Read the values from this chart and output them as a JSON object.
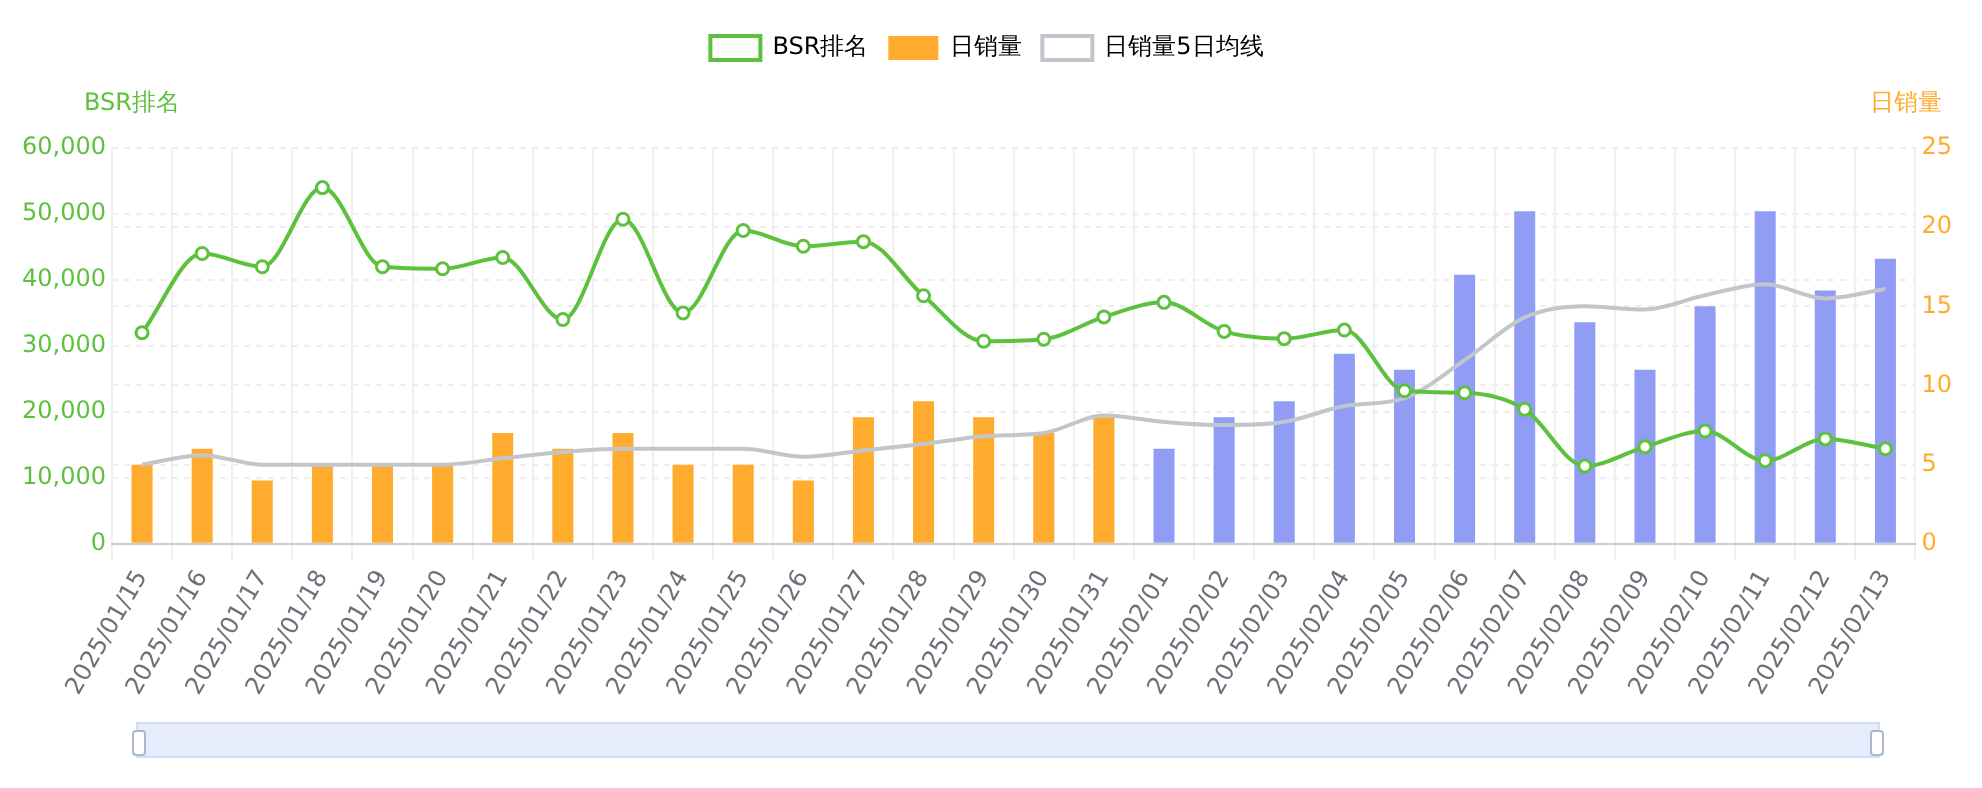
{
  "chart_data": {
    "type": "bar",
    "ylabel": "BSR排名",
    "y2label": "日销量",
    "categories": [
      "2025/01/15",
      "2025/01/16",
      "2025/01/17",
      "2025/01/18",
      "2025/01/19",
      "2025/01/20",
      "2025/01/21",
      "2025/01/22",
      "2025/01/23",
      "2025/01/24",
      "2025/01/25",
      "2025/01/26",
      "2025/01/27",
      "2025/01/28",
      "2025/01/29",
      "2025/01/30",
      "2025/01/31",
      "2025/02/01",
      "2025/02/02",
      "2025/02/03",
      "2025/02/04",
      "2025/02/05",
      "2025/02/06",
      "2025/02/07",
      "2025/02/08",
      "2025/02/09",
      "2025/02/10",
      "2025/02/11",
      "2025/02/12",
      "2025/02/13"
    ],
    "series": [
      {
        "name": "BSR排名",
        "type": "line",
        "axis": "y",
        "color": "#5dc13e",
        "marker": "circle",
        "values": [
          32000,
          44000,
          42000,
          54000,
          42000,
          41700,
          43400,
          34000,
          49200,
          35000,
          47500,
          45100,
          45800,
          37600,
          30700,
          31000,
          34400,
          36600,
          32200,
          31100,
          32400,
          23200,
          22900,
          20400,
          11800,
          14700,
          17100,
          12600,
          15900,
          14400
        ]
      },
      {
        "name": "日销量",
        "axis": "y2",
        "color": "#ffab2e",
        "colors": [
          "#ffab2e",
          "#ffab2e",
          "#ffab2e",
          "#ffab2e",
          "#ffab2e",
          "#ffab2e",
          "#ffab2e",
          "#ffab2e",
          "#ffab2e",
          "#ffab2e",
          "#ffab2e",
          "#ffab2e",
          "#ffab2e",
          "#ffab2e",
          "#ffab2e",
          "#ffab2e",
          "#ffab2e",
          "#919df5",
          "#919df5",
          "#919df5",
          "#919df5",
          "#919df5",
          "#919df5",
          "#919df5",
          "#919df5",
          "#919df5",
          "#919df5",
          "#919df5",
          "#919df5",
          "#919df5"
        ],
        "values": [
          5,
          6,
          4,
          5,
          5,
          5,
          7,
          6,
          7,
          5,
          5,
          4,
          8,
          9,
          8,
          7,
          8,
          6,
          8,
          9,
          12,
          11,
          17,
          21,
          14,
          11,
          15,
          21,
          16,
          18
        ]
      },
      {
        "name": "日销量5日均线",
        "type": "line",
        "axis": "y2",
        "color": "#c2c5cc",
        "marker": "none",
        "values": [
          5,
          5.6,
          5,
          5,
          5,
          5,
          5.4,
          5.8,
          6,
          6,
          6,
          5.5,
          5.9,
          6.3,
          6.8,
          7,
          8.1,
          7.7,
          7.5,
          7.7,
          8.7,
          9.2,
          11.6,
          14.3,
          15,
          14.8,
          15.7,
          16.4,
          15.5,
          16.1
        ]
      }
    ],
    "ylim": [
      0,
      60000
    ],
    "yticks": [
      0,
      {
        "value": 10000,
        "label": "10,000"
      },
      {
        "value": 20000,
        "label": "20,000"
      },
      {
        "value": 30000,
        "label": "30,000"
      },
      {
        "value": 40000,
        "label": "40,000"
      },
      {
        "value": 50000,
        "label": "50,000"
      },
      {
        "value": 60000,
        "label": "60,000"
      }
    ],
    "y2lim": [
      0,
      25
    ],
    "y2ticks": [
      0,
      5,
      10,
      15,
      20,
      25
    ],
    "grid": true,
    "legend": "top"
  }
}
